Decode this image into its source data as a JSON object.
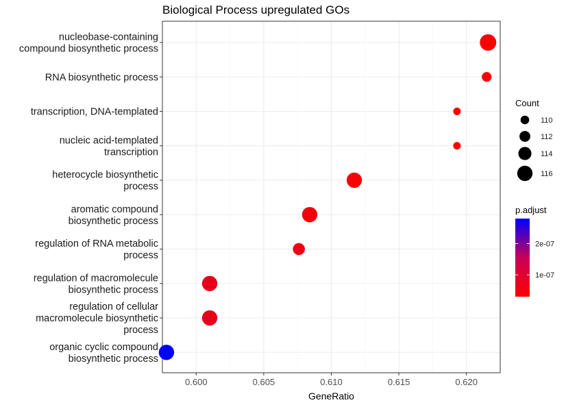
{
  "chart_data": {
    "type": "scatter",
    "title": "Biological Process upregulated GOs",
    "xlabel": "GeneRatio",
    "ylabel": "",
    "xlim": [
      0.5975,
      0.6225
    ],
    "xticks": [
      0.6,
      0.605,
      0.61,
      0.615,
      0.62
    ],
    "xtick_labels": [
      "0.600",
      "0.605",
      "0.610",
      "0.615",
      "0.620"
    ],
    "grid": true,
    "colors": {
      "low": "#ff0000",
      "high": "#0000ff",
      "text": "#000000"
    },
    "categories": [
      [
        "nucleobase-containing",
        "compound biosynthetic process"
      ],
      [
        "RNA biosynthetic process"
      ],
      [
        "transcription, DNA-templated"
      ],
      [
        "nucleic acid-templated",
        "transcription"
      ],
      [
        "heterocycle biosynthetic",
        "process"
      ],
      [
        "aromatic compound",
        "biosynthetic process"
      ],
      [
        "regulation of RNA metabolic",
        "process"
      ],
      [
        "regulation of macromolecule",
        "biosynthetic process"
      ],
      [
        "regulation of cellular",
        "macromolecule biosynthetic",
        "process"
      ],
      [
        "organic cyclic compound",
        "biosynthetic process"
      ]
    ],
    "points": [
      {
        "x": 0.6216,
        "count": 117,
        "p_adjust": 3e-08
      },
      {
        "x": 0.6215,
        "count": 111,
        "p_adjust": 3e-08
      },
      {
        "x": 0.6193,
        "count": 109,
        "p_adjust": 3e-08
      },
      {
        "x": 0.6193,
        "count": 109,
        "p_adjust": 3e-08
      },
      {
        "x": 0.6117,
        "count": 116,
        "p_adjust": 3.5e-08
      },
      {
        "x": 0.6084,
        "count": 116,
        "p_adjust": 4e-08
      },
      {
        "x": 0.6076,
        "count": 113,
        "p_adjust": 5e-08
      },
      {
        "x": 0.601,
        "count": 116,
        "p_adjust": 5.5e-08
      },
      {
        "x": 0.601,
        "count": 116,
        "p_adjust": 5.5e-08
      },
      {
        "x": 0.5978,
        "count": 116,
        "p_adjust": 2.8e-07
      }
    ],
    "legend_size": {
      "title": "Count",
      "values": [
        110,
        112,
        114,
        116
      ],
      "labels": [
        "110",
        "112",
        "114",
        "116"
      ]
    },
    "legend_color": {
      "title": "p.adjust",
      "range": [
        3e-08,
        2.8e-07
      ],
      "ticks": [
        2e-07,
        1e-07
      ],
      "labels": [
        "2e-07",
        "1e-07"
      ]
    }
  }
}
